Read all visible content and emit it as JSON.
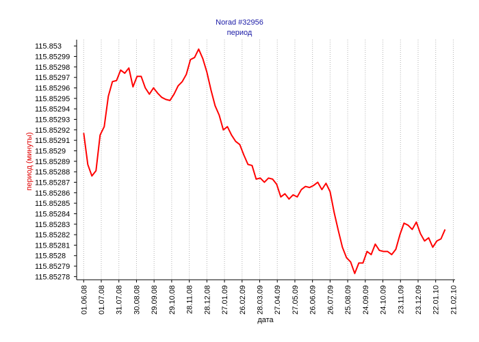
{
  "chart_data": {
    "type": "line",
    "title": "Norad #32956",
    "subtitle": "период",
    "ylabel": "период (минуты)",
    "xlabel": "дата",
    "color": "#ff0000",
    "grid": "x",
    "xlim": [
      "20.05.08",
      "24.02.10"
    ],
    "xticks": [
      "01.06.08",
      "01.07.08",
      "31.07.08",
      "30.08.08",
      "29.09.08",
      "29.10.08",
      "28.11.08",
      "28.12.08",
      "27.01.09",
      "26.02.09",
      "28.03.09",
      "27.04.09",
      "27.05.09",
      "26.06.09",
      "26.07.09",
      "25.08.09",
      "24.09.09",
      "24.10.09",
      "23.11.09",
      "23.12.09",
      "22.01.10",
      "21.02.10"
    ],
    "ylim": [
      115.852777,
      115.853006
    ],
    "yticks": [
      115.85278,
      115.85279,
      115.8528,
      115.85281,
      115.85282,
      115.85283,
      115.85284,
      115.85285,
      115.85286,
      115.85287,
      115.85288,
      115.85289,
      115.8529,
      115.85291,
      115.85292,
      115.85293,
      115.85294,
      115.85295,
      115.85296,
      115.85297,
      115.85298,
      115.85299,
      115.853
    ],
    "x": [
      "01.06.08",
      "08.06.08",
      "15.06.08",
      "22.06.08",
      "29.06.08",
      "06.07.08",
      "13.07.08",
      "20.07.08",
      "27.07.08",
      "03.08.08",
      "10.08.08",
      "17.08.08",
      "24.08.08",
      "31.08.08",
      "07.09.08",
      "14.09.08",
      "21.09.08",
      "28.09.08",
      "05.10.08",
      "12.10.08",
      "19.10.08",
      "26.10.08",
      "02.11.08",
      "09.11.08",
      "16.11.08",
      "23.11.08",
      "30.11.08",
      "07.12.08",
      "14.12.08",
      "21.12.08",
      "28.12.08",
      "04.01.09",
      "11.01.09",
      "18.01.09",
      "25.01.09",
      "01.02.09",
      "08.02.09",
      "15.02.09",
      "22.02.09",
      "01.03.09",
      "08.03.09",
      "15.03.09",
      "22.03.09",
      "29.03.09",
      "05.04.09",
      "12.04.09",
      "19.04.09",
      "26.04.09",
      "03.05.09",
      "10.05.09",
      "17.05.09",
      "24.05.09",
      "31.05.09",
      "07.06.09",
      "14.06.09",
      "21.06.09",
      "28.06.09",
      "05.07.09",
      "12.07.09",
      "19.07.09",
      "26.07.09",
      "02.08.09",
      "09.08.09",
      "16.08.09",
      "23.08.09",
      "30.08.09",
      "06.09.09",
      "13.09.09",
      "20.09.09",
      "27.09.09",
      "04.10.09",
      "11.10.09",
      "18.10.09",
      "25.10.09",
      "01.11.09",
      "08.11.09",
      "15.11.09",
      "22.11.09",
      "29.11.09",
      "06.12.09",
      "13.12.09",
      "20.12.09",
      "27.12.09",
      "03.01.10",
      "10.01.10",
      "17.01.10",
      "24.01.10",
      "31.01.10",
      "07.02.10"
    ],
    "values": [
      115.852917,
      115.852887,
      115.852876,
      115.852881,
      115.852915,
      115.852923,
      115.852952,
      115.852966,
      115.852967,
      115.852977,
      115.852974,
      115.852979,
      115.852961,
      115.852971,
      115.852971,
      115.85296,
      115.852954,
      115.85296,
      115.852955,
      115.852951,
      115.852949,
      115.852948,
      115.852954,
      115.852962,
      115.852966,
      115.852973,
      115.852987,
      115.852989,
      115.852997,
      115.852988,
      115.852975,
      115.852958,
      115.852943,
      115.852934,
      115.85292,
      115.852923,
      115.852915,
      115.852909,
      115.852906,
      115.852896,
      115.852887,
      115.852886,
      115.852873,
      115.852874,
      115.85287,
      115.852874,
      115.852873,
      115.852868,
      115.852856,
      115.852859,
      115.852854,
      115.852858,
      115.852856,
      115.852863,
      115.852866,
      115.852865,
      115.852867,
      115.85287,
      115.852863,
      115.852869,
      115.852861,
      115.852841,
      115.852824,
      115.852808,
      115.852798,
      115.852794,
      115.852783,
      115.852793,
      115.852793,
      115.852804,
      115.852801,
      115.852811,
      115.852805,
      115.852804,
      115.852804,
      115.852801,
      115.852806,
      115.85282,
      115.852831,
      115.852829,
      115.852825,
      115.852832,
      115.852821,
      115.852814,
      115.852817,
      115.852808,
      115.852814,
      115.852816,
      115.852825
    ]
  }
}
